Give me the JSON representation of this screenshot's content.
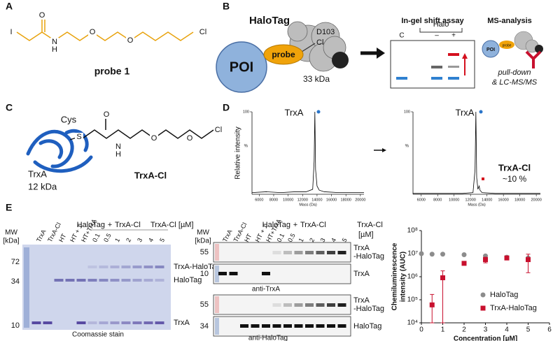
{
  "panel_labels": [
    "A",
    "B",
    "C",
    "D",
    "E"
  ],
  "probe": {
    "atoms": [
      "I",
      "O",
      "N",
      "H",
      "O",
      "O",
      "Cl"
    ],
    "name": "probe 1"
  },
  "halotag": {
    "title": "HaloTag",
    "residue": "D103",
    "leaving_group": "Cl",
    "poi": "POI",
    "probe": "probe",
    "mass": "33 kDa"
  },
  "shift_assay": {
    "title": "In-gel shift assay",
    "header": "Halo",
    "lanes": [
      "C",
      "–",
      "+"
    ]
  },
  "ms_analysis": {
    "title": "MS-analysis",
    "poi": "POI",
    "probe": "probe",
    "caption": [
      "pull-down",
      "& LC-MS/MS"
    ]
  },
  "trxa_cl": {
    "residue": "Cys",
    "atoms": [
      "S",
      "O",
      "N",
      "H",
      "O",
      "O",
      "Cl"
    ],
    "protein": "TrxA",
    "mass": "12 kDa",
    "name": "TrxA-Cl"
  },
  "gel": {
    "mw_label": [
      "MW",
      "[kDa]"
    ],
    "lanes": [
      "TrxA",
      "TrxA-Cl",
      "HT",
      "HT + 1",
      "HT+TrxA",
      0.1,
      0.5,
      1,
      2,
      3,
      4,
      5
    ],
    "group": [
      "HaloTag",
      "+",
      "TrxA-Cl"
    ],
    "conc_label": "TrxA-Cl [µM]",
    "mw": [
      72,
      34,
      10
    ],
    "bands": [
      "TrxA-HaloTag",
      "HaloTag",
      "TrxA"
    ],
    "caption": "Coomassie stain"
  },
  "western": {
    "mw_label": [
      "MW",
      "[kDa]"
    ],
    "lanes": [
      "TrxA",
      "TrxA-Cl",
      "HT",
      "HT + 1",
      "HT+TrxA",
      0.1,
      0.5,
      1,
      2,
      3,
      4,
      5
    ],
    "group": [
      "HaloTag",
      "+",
      "TrxA-Cl"
    ],
    "conc_label": [
      "TrxA-Cl",
      "[µM]"
    ],
    "blots": [
      {
        "mw": [
          55,
          10
        ],
        "bands": [
          [
            "TrxA",
            "-HaloTag"
          ],
          [
            "TrxA"
          ]
        ],
        "caption": "anti-TrxA"
      },
      {
        "mw": [
          55,
          34
        ],
        "bands": [
          [
            "TrxA",
            "-HaloTag"
          ],
          [
            "HaloTag"
          ]
        ],
        "caption": "anti-HaloTag"
      }
    ]
  },
  "chart_data": [
    {
      "type": "line",
      "ylabel": "Relative intensity",
      "xlabel": "Mass (Da)",
      "y_unit": "%",
      "annotations": [
        "TrxA"
      ],
      "color": "#000000",
      "x": [
        5000,
        7000,
        9000,
        11000,
        12500,
        13400,
        13600,
        13700,
        13800,
        14000,
        14300,
        15000,
        17000,
        20500
      ],
      "values": [
        2,
        3,
        2,
        3,
        3,
        6,
        40,
        100,
        30,
        10,
        5,
        3,
        2,
        2
      ],
      "xlim": [
        5000,
        20500
      ],
      "xticks": [
        6000,
        8000,
        10000,
        12000,
        14000,
        16000,
        18000,
        20000
      ],
      "ylim": [
        0,
        100
      ],
      "yticks": [
        100
      ]
    },
    {
      "type": "line",
      "xlabel": "Mass (Da)",
      "y_unit": "%",
      "annotations": [
        "TrxA",
        "TrxA-Cl",
        "~10 %"
      ],
      "color": "#000000",
      "x": [
        5000,
        7000,
        9000,
        11000,
        12300,
        12550,
        12650,
        12750,
        12900,
        13050,
        13150,
        13400,
        15000,
        17000,
        20500
      ],
      "values": [
        1,
        1,
        1,
        1,
        2,
        30,
        100,
        20,
        6,
        10,
        5,
        2,
        1,
        1,
        1
      ],
      "xlim": [
        5000,
        20500
      ],
      "xticks": [
        6000,
        8000,
        10000,
        12000,
        14000,
        16000,
        18000,
        20000
      ],
      "ylim": [
        0,
        100
      ],
      "yticks": [
        100
      ]
    },
    {
      "type": "scatter",
      "xlabel": "Concentration [µM]",
      "ylabel": [
        "Chemiluminescence",
        "intensity (AUC)"
      ],
      "log_y": true,
      "legend": "lower right",
      "xlim": [
        0,
        6
      ],
      "xticks": [
        0,
        1,
        2,
        3,
        4,
        5,
        6
      ],
      "ylim": [
        10000,
        100000000
      ],
      "yticks": [
        {
          "value": 10000,
          "label": "10⁴"
        },
        {
          "value": 100000,
          "label": "10⁵"
        },
        {
          "value": 1000000,
          "label": "10⁶"
        },
        {
          "value": 10000000,
          "label": "10⁷"
        },
        {
          "value": 100000000,
          "label": "10⁸"
        }
      ],
      "series": [
        {
          "name": "HaloTag",
          "color": "#8c8c8c",
          "marker": "circle",
          "x": [
            0,
            0.5,
            1,
            2,
            3,
            4,
            5
          ],
          "values": [
            10000000,
            9500000,
            9500000,
            9000000,
            8000000,
            7000000,
            6500000
          ]
        },
        {
          "name": "TrxA-HaloTag",
          "color": "#c8102e",
          "marker": "square",
          "x": [
            0.5,
            1,
            2,
            3,
            4,
            5
          ],
          "values": [
            60000,
            900000,
            3800000,
            5500000,
            6500000,
            5500000
          ],
          "errors": [
            110000,
            900000,
            500000,
            1500000,
            800000,
            4000000
          ]
        }
      ]
    }
  ]
}
